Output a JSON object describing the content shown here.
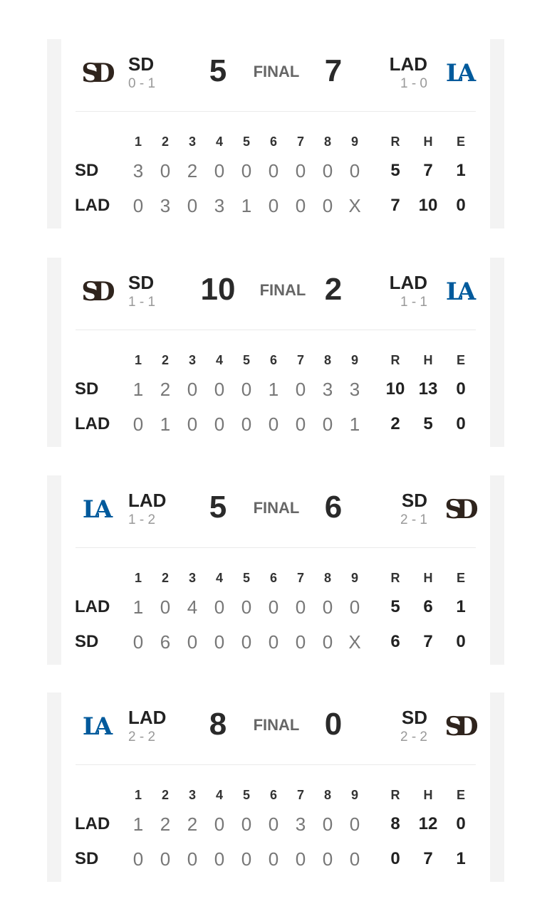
{
  "colors": {
    "sd_brown": "#2f241d",
    "lad_blue": "#005a9c"
  },
  "columns": {
    "innings": [
      "1",
      "2",
      "3",
      "4",
      "5",
      "6",
      "7",
      "8",
      "9"
    ],
    "totals": [
      "R",
      "H",
      "E"
    ]
  },
  "games": [
    {
      "status": "FINAL",
      "away": {
        "abbr": "SD",
        "record": "0 - 1",
        "score": "5",
        "logo": "padres-logo"
      },
      "home": {
        "abbr": "LAD",
        "record": "1 - 0",
        "score": "7",
        "logo": "dodgers-logo"
      },
      "lines": [
        {
          "team": "SD",
          "innings": [
            "3",
            "0",
            "2",
            "0",
            "0",
            "0",
            "0",
            "0",
            "0"
          ],
          "totals": [
            "5",
            "7",
            "1"
          ]
        },
        {
          "team": "LAD",
          "innings": [
            "0",
            "3",
            "0",
            "3",
            "1",
            "0",
            "0",
            "0",
            "X"
          ],
          "totals": [
            "7",
            "10",
            "0"
          ]
        }
      ]
    },
    {
      "status": "FINAL",
      "away": {
        "abbr": "SD",
        "record": "1 - 1",
        "score": "10",
        "logo": "padres-logo"
      },
      "home": {
        "abbr": "LAD",
        "record": "1 - 1",
        "score": "2",
        "logo": "dodgers-logo"
      },
      "lines": [
        {
          "team": "SD",
          "innings": [
            "1",
            "2",
            "0",
            "0",
            "0",
            "1",
            "0",
            "3",
            "3"
          ],
          "totals": [
            "10",
            "13",
            "0"
          ]
        },
        {
          "team": "LAD",
          "innings": [
            "0",
            "1",
            "0",
            "0",
            "0",
            "0",
            "0",
            "0",
            "1"
          ],
          "totals": [
            "2",
            "5",
            "0"
          ]
        }
      ]
    },
    {
      "status": "FINAL",
      "away": {
        "abbr": "LAD",
        "record": "1 - 2",
        "score": "5",
        "logo": "dodgers-logo"
      },
      "home": {
        "abbr": "SD",
        "record": "2 - 1",
        "score": "6",
        "logo": "padres-logo"
      },
      "lines": [
        {
          "team": "LAD",
          "innings": [
            "1",
            "0",
            "4",
            "0",
            "0",
            "0",
            "0",
            "0",
            "0"
          ],
          "totals": [
            "5",
            "6",
            "1"
          ]
        },
        {
          "team": "SD",
          "innings": [
            "0",
            "6",
            "0",
            "0",
            "0",
            "0",
            "0",
            "0",
            "X"
          ],
          "totals": [
            "6",
            "7",
            "0"
          ]
        }
      ]
    },
    {
      "status": "FINAL",
      "away": {
        "abbr": "LAD",
        "record": "2 - 2",
        "score": "8",
        "logo": "dodgers-logo"
      },
      "home": {
        "abbr": "SD",
        "record": "2 - 2",
        "score": "0",
        "logo": "padres-logo"
      },
      "lines": [
        {
          "team": "LAD",
          "innings": [
            "1",
            "2",
            "2",
            "0",
            "0",
            "0",
            "3",
            "0",
            "0"
          ],
          "totals": [
            "8",
            "12",
            "0"
          ]
        },
        {
          "team": "SD",
          "innings": [
            "0",
            "0",
            "0",
            "0",
            "0",
            "0",
            "0",
            "0",
            "0"
          ],
          "totals": [
            "0",
            "7",
            "1"
          ]
        }
      ]
    }
  ]
}
